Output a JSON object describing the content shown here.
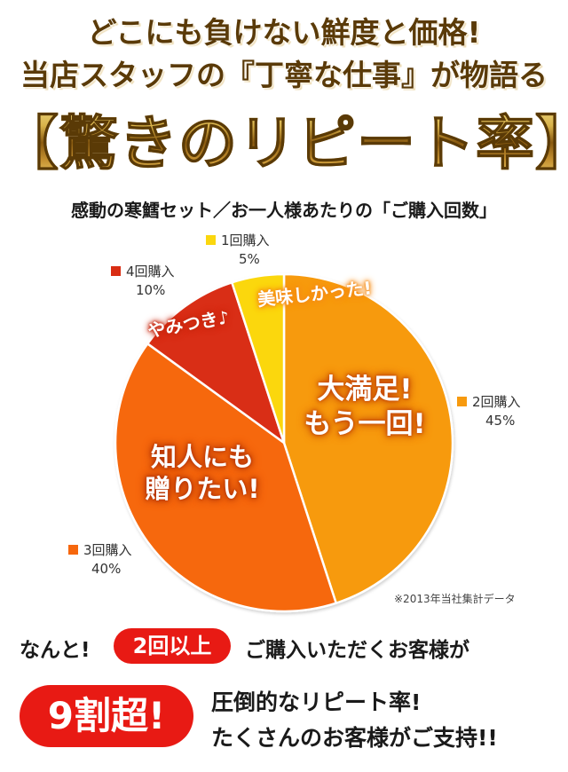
{
  "headline": {
    "line1": "どこにも負けない鮮度と価格!",
    "line2": "当店スタッフの『丁寧な仕事』が物語る",
    "line3": "【驚きのリピート率】"
  },
  "chart_data": {
    "type": "pie",
    "title": "感動の寒鱈セット／お一人様あたりの「ご購入回数」",
    "slices": [
      {
        "label": "2回購入",
        "value": 45,
        "value_label": "45%",
        "color": "#f79a0e",
        "callout": "大満足!\nもう一回!"
      },
      {
        "label": "3回購入",
        "value": 40,
        "value_label": "40%",
        "color": "#f6670d",
        "callout": "知人にも\n贈りたい!"
      },
      {
        "label": "4回購入",
        "value": 10,
        "value_label": "10%",
        "color": "#d92d13",
        "callout": "やみつき♪"
      },
      {
        "label": "1回購入",
        "value": 5,
        "value_label": "5%",
        "color": "#fbd70e",
        "callout": "美味しかった!"
      }
    ],
    "start_angle": "12 o'clock",
    "direction": "clockwise",
    "note": "※2013年当社集計データ"
  },
  "footer": {
    "line1_prefix": "なんと!",
    "badge1": "2回以上",
    "line1_suffix": "ご購入いただくお客様が",
    "badge2": "9割超!",
    "line2": "圧倒的なリピート率!",
    "line3": "たくさんのお客様がご支持!!"
  }
}
